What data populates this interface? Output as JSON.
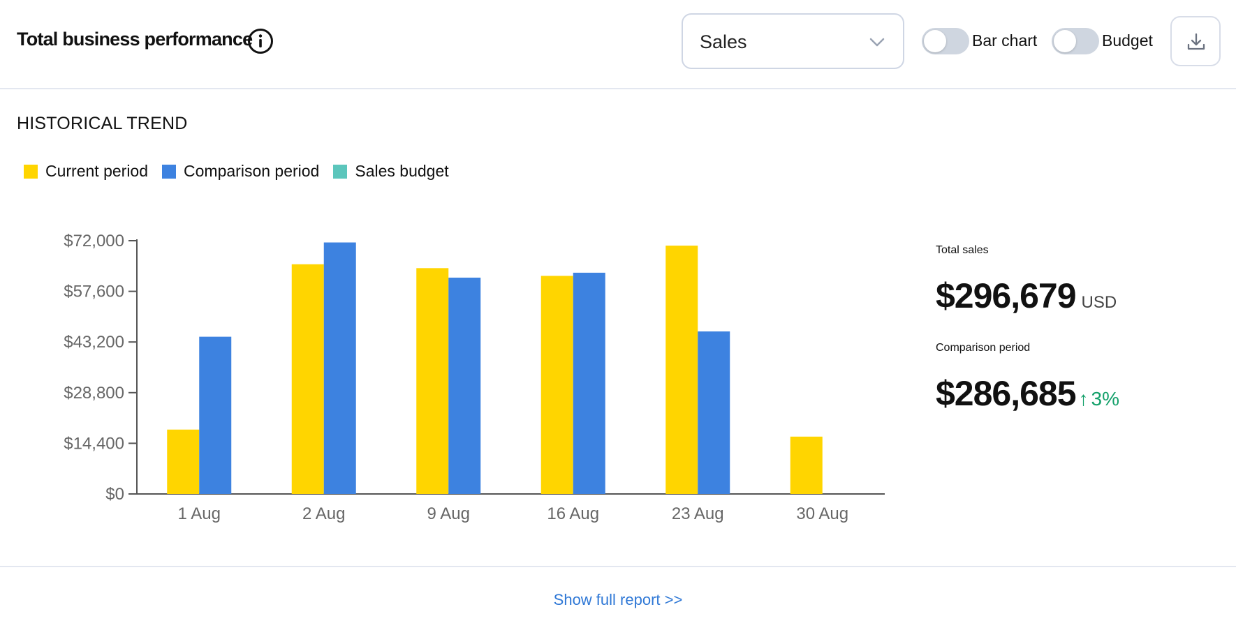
{
  "header": {
    "title": "Total business performance",
    "metric_select": {
      "value": "Sales"
    },
    "toggles": [
      {
        "label": "Bar chart",
        "on": false
      },
      {
        "label": "Budget",
        "on": false
      }
    ],
    "download_icon": "download-icon",
    "info_icon": "info-icon"
  },
  "section": {
    "title": "HISTORICAL TREND"
  },
  "legend": [
    {
      "label": "Current period",
      "color": "#FFD500"
    },
    {
      "label": "Comparison period",
      "color": "#3D82E0"
    },
    {
      "label": "Sales budget",
      "color": "#5CC6BC"
    }
  ],
  "chart_data": {
    "type": "bar",
    "categories": [
      "1 Aug",
      "2 Aug",
      "9 Aug",
      "16 Aug",
      "23 Aug",
      "30 Aug"
    ],
    "series": [
      {
        "name": "Current period",
        "color": "#FFD500",
        "values": [
          18300,
          65300,
          64200,
          62000,
          70600,
          16300
        ]
      },
      {
        "name": "Comparison period",
        "color": "#3D82E0",
        "values": [
          44700,
          71500,
          61500,
          62900,
          46200,
          null
        ]
      }
    ],
    "y_ticks": [
      "$0",
      "$14,400",
      "$28,800",
      "$43,200",
      "$57,600",
      "$72,000"
    ],
    "ylim": [
      0,
      72000
    ],
    "grid": false
  },
  "summary": {
    "total_label": "Total sales",
    "total_value": "$296,679",
    "total_unit": "USD",
    "comparison_label": "Comparison period",
    "comparison_value": "$286,685",
    "change_arrow": "↑",
    "change_value": "3%"
  },
  "footer": {
    "link": "Show full report >>"
  }
}
